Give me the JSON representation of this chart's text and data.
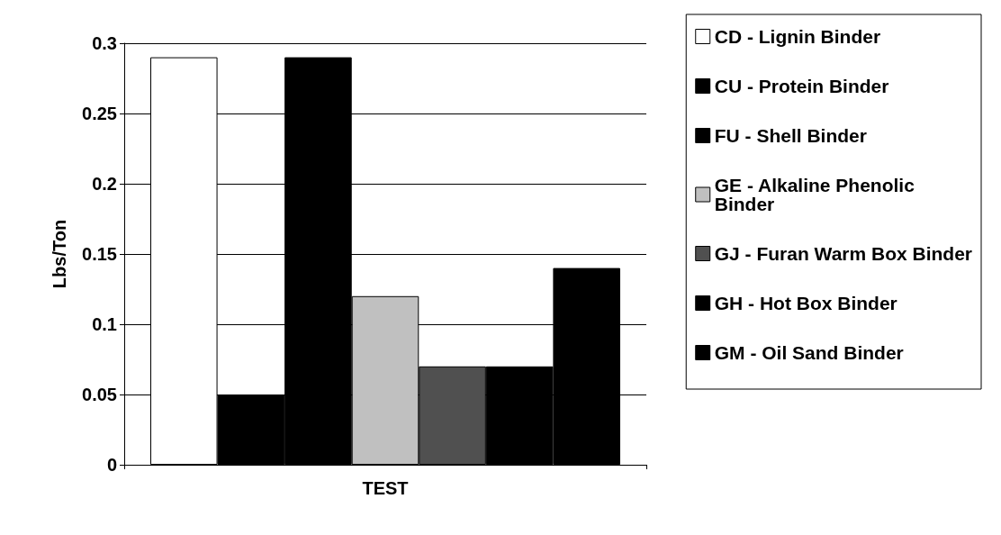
{
  "chart_data": {
    "type": "bar",
    "ylabel": "Lbs/Ton",
    "categories": [
      "TEST"
    ],
    "series": [
      {
        "name": "CD - Lignin Binder",
        "color": "#ffffff",
        "values": [
          0.29
        ]
      },
      {
        "name": "CU - Protein Binder",
        "color": "#000000",
        "values": [
          0.05
        ]
      },
      {
        "name": "FU - Shell Binder",
        "color": "#000000",
        "values": [
          0.29
        ]
      },
      {
        "name": "GE - Alkaline Phenolic  Binder",
        "color": "#c0c0c0",
        "values": [
          0.12
        ]
      },
      {
        "name": "GJ - Furan Warm Box Binder",
        "color": "#505050",
        "values": [
          0.07
        ]
      },
      {
        "name": "GH - Hot Box Binder",
        "color": "#000000",
        "values": [
          0.07
        ]
      },
      {
        "name": "GM - Oil Sand Binder",
        "color": "#000000",
        "values": [
          0.14
        ]
      }
    ],
    "ylim": [
      0,
      0.3
    ],
    "yticks": [
      0,
      0.05,
      0.1,
      0.15,
      0.2,
      0.25,
      0.3
    ],
    "grid": "y",
    "legend": "right"
  }
}
